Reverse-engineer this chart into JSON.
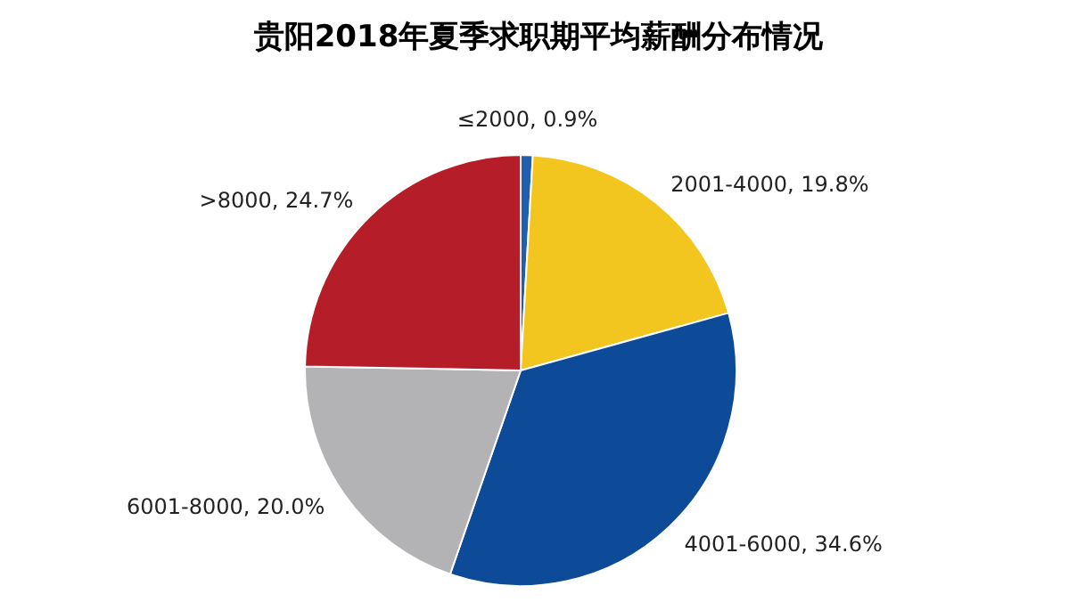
{
  "chart_data": {
    "type": "pie",
    "title": "贵阳2018年夏季求职期平均薪酬分布情况",
    "categories": [
      "≤2000",
      "2001-4000",
      "4001-6000",
      "6001-8000",
      ">8000"
    ],
    "values": [
      0.9,
      19.8,
      34.6,
      20.0,
      24.7
    ],
    "value_labels": [
      "0.9%",
      "19.8%",
      "34.6%",
      "20.0%",
      "24.7%"
    ],
    "colors": [
      "#1f5fae",
      "#f2c61f",
      "#0d4a98",
      "#b3b3b5",
      "#b51e28"
    ],
    "legend": false
  }
}
